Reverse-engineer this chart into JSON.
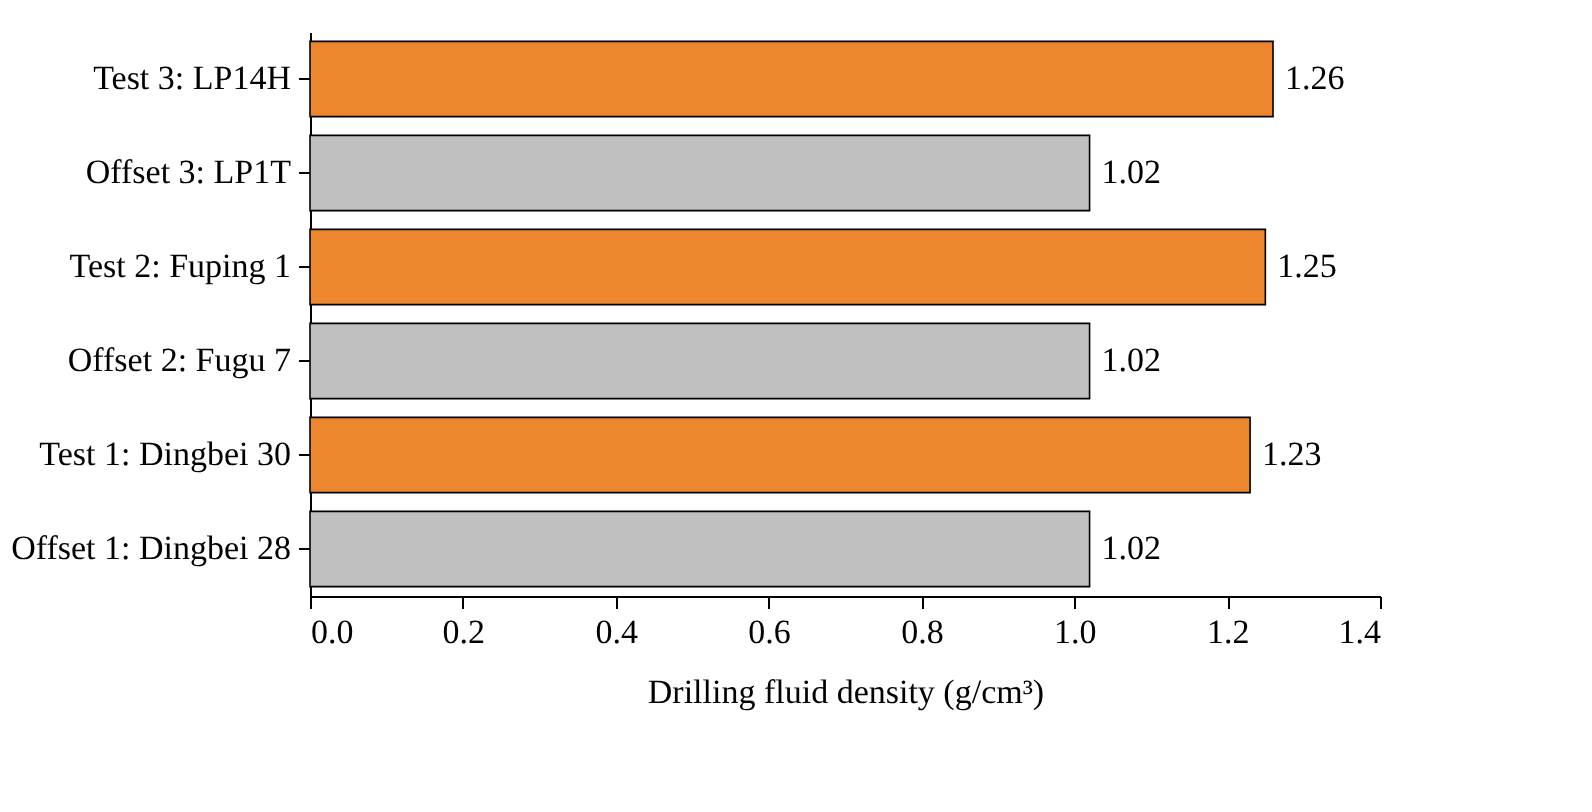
{
  "chart_data": {
    "type": "bar",
    "orientation": "horizontal",
    "xlabel": "Drilling fluid density (g/cm³)",
    "categories": [
      "Test 3: LP14H",
      "Offset 3: LP1T",
      "Test 2: Fuping 1",
      "Offset 2: Fugu 7",
      "Test 1: Dingbei 30",
      "Offset 1: Dingbei 28"
    ],
    "values": [
      1.26,
      1.02,
      1.25,
      1.02,
      1.23,
      1.02
    ],
    "colors": [
      "#ed872d",
      "#c0c0c0",
      "#ed872d",
      "#c0c0c0",
      "#ed872d",
      "#c0c0c0"
    ],
    "xlim": [
      0,
      1.4
    ],
    "xticks": [
      {
        "value": 0,
        "label": "0.0"
      },
      {
        "value": 0.2,
        "label": "0.2"
      },
      {
        "value": 0.4,
        "label": "0.4"
      },
      {
        "value": 0.6,
        "label": "0.6"
      },
      {
        "value": 0.8,
        "label": "0.8"
      },
      {
        "value": 1.0,
        "label": "1.0"
      },
      {
        "value": 1.2,
        "label": "1.2"
      },
      {
        "value": 1.4,
        "label": "1.4"
      }
    ],
    "data_labels": true,
    "grid": false,
    "legend": false
  }
}
